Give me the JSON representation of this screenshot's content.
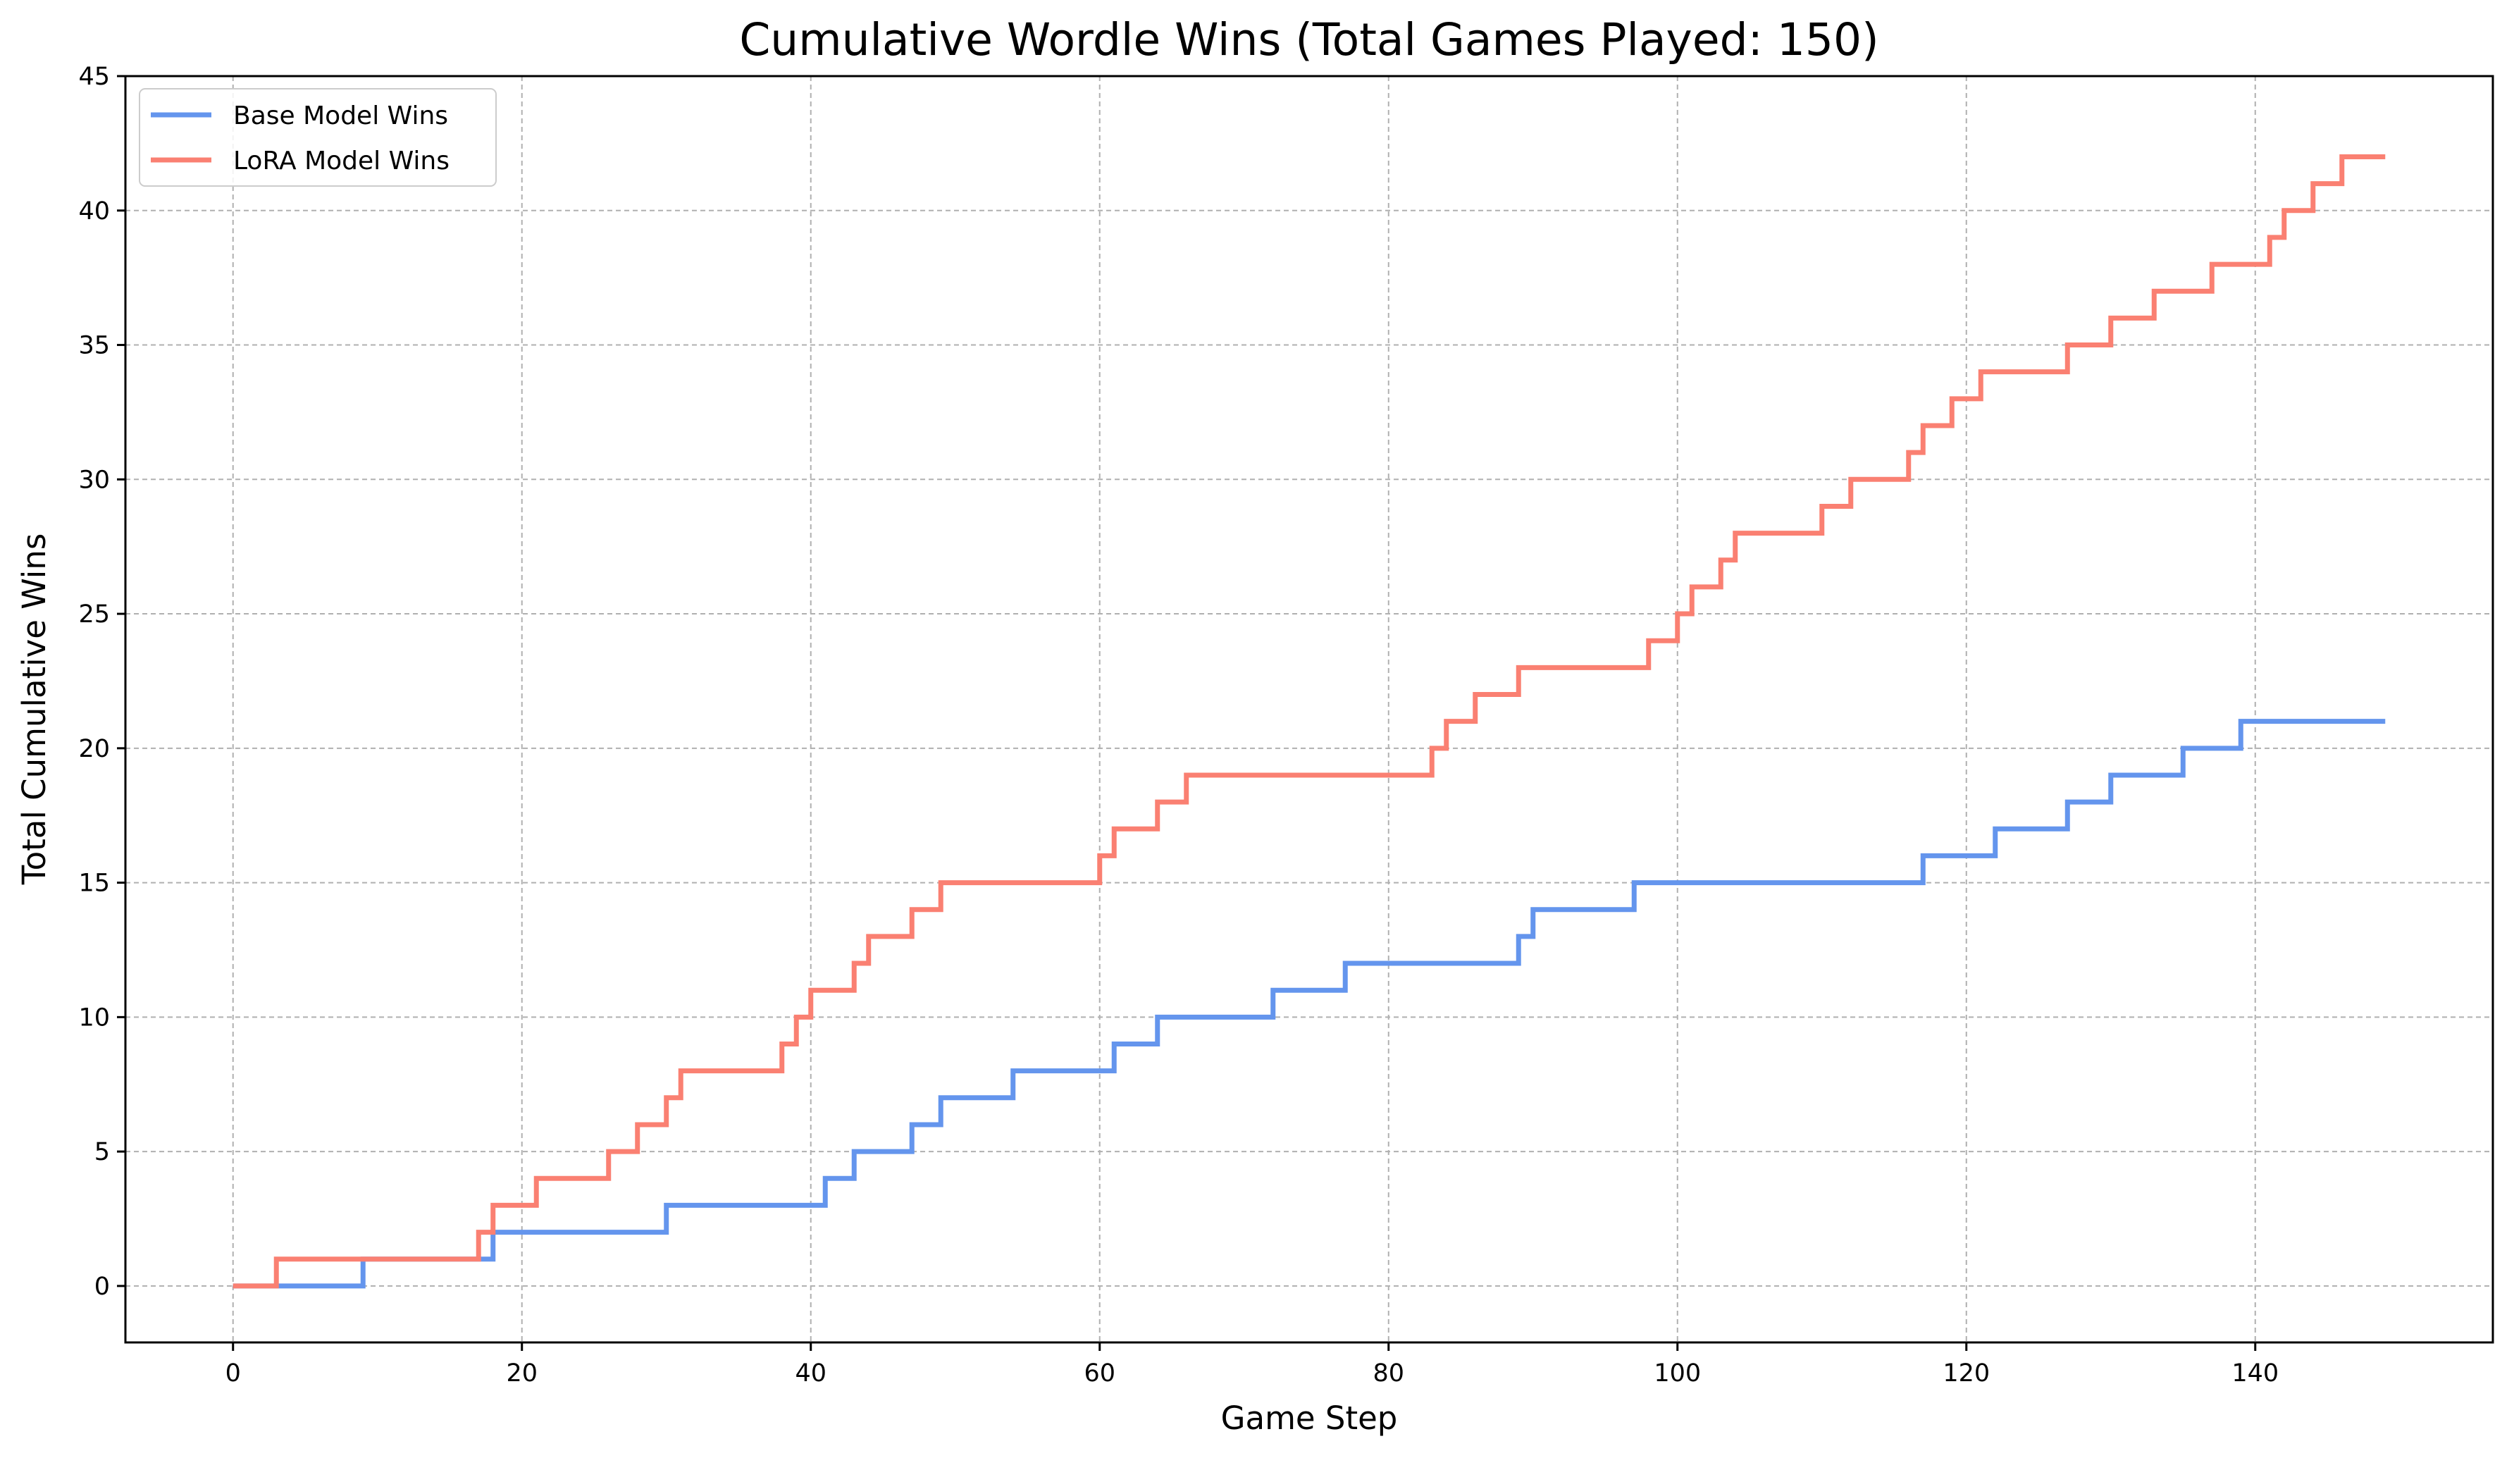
{
  "chart_data": {
    "type": "line",
    "step": "post",
    "title": "Cumulative Wordle Wins (Total Games Played: 150)",
    "xlabel": "Game Step",
    "ylabel": "Total Cumulative Wins",
    "xlim": [
      -7.45,
      156.45
    ],
    "ylim": [
      -2.1,
      45
    ],
    "xticks": [
      0,
      20,
      40,
      60,
      80,
      100,
      120,
      140
    ],
    "yticks": [
      0,
      5,
      10,
      15,
      20,
      25,
      30,
      35,
      40,
      45
    ],
    "grid": true,
    "legend_position": "top-left",
    "series": [
      {
        "name": "Base Model Wins",
        "color": "#6495ed",
        "points": [
          [
            0,
            0
          ],
          [
            9,
            1
          ],
          [
            18,
            2
          ],
          [
            30,
            3
          ],
          [
            41,
            4
          ],
          [
            43,
            5
          ],
          [
            47,
            6
          ],
          [
            49,
            7
          ],
          [
            54,
            8
          ],
          [
            61,
            9
          ],
          [
            64,
            10
          ],
          [
            72,
            11
          ],
          [
            77,
            12
          ],
          [
            89,
            13
          ],
          [
            90,
            14
          ],
          [
            97,
            15
          ],
          [
            117,
            16
          ],
          [
            122,
            17
          ],
          [
            127,
            18
          ],
          [
            130,
            19
          ],
          [
            135,
            20
          ],
          [
            139,
            21
          ],
          [
            149,
            21
          ]
        ]
      },
      {
        "name": "LoRA Model Wins",
        "color": "#fa8072",
        "points": [
          [
            0,
            0
          ],
          [
            3,
            1
          ],
          [
            17,
            2
          ],
          [
            18,
            3
          ],
          [
            21,
            4
          ],
          [
            26,
            5
          ],
          [
            28,
            6
          ],
          [
            30,
            7
          ],
          [
            31,
            8
          ],
          [
            38,
            9
          ],
          [
            39,
            10
          ],
          [
            40,
            11
          ],
          [
            43,
            12
          ],
          [
            44,
            13
          ],
          [
            47,
            14
          ],
          [
            49,
            15
          ],
          [
            60,
            16
          ],
          [
            61,
            17
          ],
          [
            64,
            18
          ],
          [
            66,
            19
          ],
          [
            83,
            20
          ],
          [
            84,
            21
          ],
          [
            86,
            22
          ],
          [
            89,
            23
          ],
          [
            98,
            24
          ],
          [
            100,
            25
          ],
          [
            101,
            26
          ],
          [
            103,
            27
          ],
          [
            104,
            28
          ],
          [
            110,
            29
          ],
          [
            112,
            30
          ],
          [
            116,
            31
          ],
          [
            117,
            32
          ],
          [
            119,
            33
          ],
          [
            121,
            34
          ],
          [
            127,
            35
          ],
          [
            130,
            36
          ],
          [
            133,
            37
          ],
          [
            137,
            38
          ],
          [
            141,
            39
          ],
          [
            142,
            40
          ],
          [
            144,
            41
          ],
          [
            146,
            42
          ],
          [
            149,
            42
          ]
        ]
      }
    ]
  }
}
